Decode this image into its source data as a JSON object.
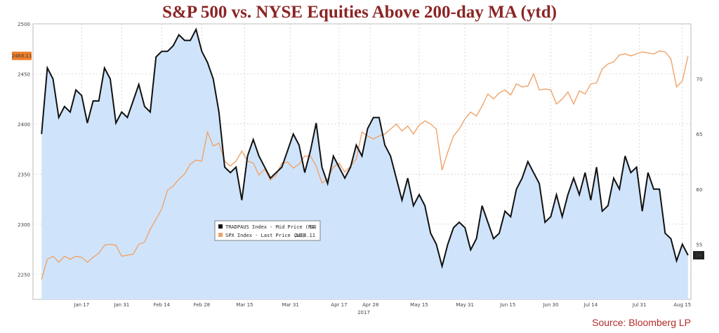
{
  "title": "S&P 500 vs. NYSE Equities Above 200-day MA (ytd)",
  "source": "Source: Bloomberg LP",
  "chart_data": {
    "type": "line",
    "xlabel": "2017",
    "grid": true,
    "legend_position": "center-left",
    "x_ticks": [
      "Jan 17",
      "Jan 31",
      "Feb 14",
      "Feb 28",
      "Mar 15",
      "Mar 31",
      "Apr 17",
      "Apr 28",
      "May 15",
      "May 31",
      "Jun 15",
      "Jun 30",
      "Jul 14",
      "Jul 31",
      "Aug 15"
    ],
    "x_tick_days": [
      17,
      31,
      45,
      59,
      74,
      90,
      107,
      118,
      135,
      151,
      166,
      181,
      195,
      212,
      227
    ],
    "left_axis": {
      "ylim": [
        2225,
        2500
      ],
      "ticks": [
        2250,
        2300,
        2350,
        2400,
        2450,
        2500
      ]
    },
    "right_axis": {
      "ylim": [
        50,
        75
      ],
      "ticks": [
        55,
        60,
        65,
        70
      ]
    },
    "series": [
      {
        "name": "TRADPAUS Index - Mid Price (R1)",
        "last_label": "54",
        "axis": "right",
        "color": "#111111",
        "fill": "#cfe4fb",
        "x": [
          3,
          5,
          7,
          9,
          11,
          13,
          15,
          17,
          19,
          21,
          23,
          25,
          27,
          29,
          31,
          33,
          35,
          37,
          39,
          41,
          43,
          45,
          47,
          49,
          51,
          53,
          55,
          57,
          59,
          61,
          63,
          65,
          67,
          69,
          71,
          73,
          75,
          77,
          79,
          81,
          83,
          85,
          87,
          89,
          91,
          93,
          95,
          97,
          99,
          101,
          103,
          105,
          107,
          109,
          111,
          113,
          115,
          117,
          119,
          121,
          123,
          125,
          127,
          129,
          131,
          133,
          135,
          137,
          139,
          141,
          143,
          145,
          147,
          149,
          151,
          153,
          155,
          157,
          159,
          161,
          163,
          165,
          167,
          169,
          171,
          173,
          175,
          177,
          179,
          181,
          183,
          185,
          187,
          189,
          191,
          193,
          195,
          197,
          199,
          201,
          203,
          205,
          207,
          209,
          211,
          213,
          215,
          217,
          219,
          221,
          223,
          225,
          227,
          229
        ],
        "y": [
          65,
          71,
          70,
          66.5,
          67.5,
          67,
          69,
          68.5,
          66,
          68,
          68,
          71,
          70,
          66,
          67,
          66.5,
          68,
          69.5,
          67.5,
          67,
          72,
          72.5,
          72.5,
          73,
          74,
          73.5,
          73.5,
          74.5,
          72.5,
          71.5,
          70,
          67,
          62,
          61.5,
          62,
          59,
          63,
          64.5,
          63,
          62,
          61,
          61.5,
          62,
          63.5,
          65,
          64,
          61.5,
          63.5,
          66,
          62,
          60.5,
          63,
          62,
          61,
          62,
          64,
          63,
          65.5,
          66.5,
          66.5,
          64,
          63,
          61,
          59,
          61,
          58.5,
          59.5,
          58.5,
          56,
          55,
          53,
          55,
          56.5,
          57,
          56.5,
          54.5,
          55.5,
          58.5,
          57,
          55.5,
          56,
          58,
          57.5,
          60,
          61,
          62.5,
          61.5,
          60.5,
          57,
          57.5,
          59.5,
          57.5,
          59.5,
          61,
          59.5,
          61.5,
          59,
          62,
          58,
          58.5,
          61,
          60,
          63,
          61.5,
          62,
          58,
          61.5,
          60,
          60,
          56,
          55.5,
          53.5,
          55,
          54
        ]
      },
      {
        "name": "SPX Index - Last Price (L1)",
        "last_label": "2468.11",
        "axis": "left",
        "color": "#f0a36a",
        "x": [
          3,
          5,
          7,
          9,
          11,
          13,
          15,
          17,
          19,
          21,
          23,
          25,
          27,
          29,
          31,
          33,
          35,
          37,
          39,
          41,
          43,
          45,
          47,
          49,
          51,
          53,
          55,
          57,
          59,
          61,
          63,
          65,
          67,
          69,
          71,
          73,
          75,
          77,
          79,
          81,
          83,
          85,
          87,
          89,
          91,
          93,
          95,
          97,
          99,
          101,
          103,
          105,
          107,
          109,
          111,
          113,
          115,
          117,
          119,
          121,
          123,
          125,
          127,
          129,
          131,
          133,
          135,
          137,
          139,
          141,
          143,
          145,
          147,
          149,
          151,
          153,
          155,
          157,
          159,
          161,
          163,
          165,
          167,
          169,
          171,
          173,
          175,
          177,
          179,
          181,
          183,
          185,
          187,
          189,
          191,
          193,
          195,
          197,
          199,
          201,
          203,
          205,
          207,
          209,
          211,
          213,
          215,
          217,
          219,
          221,
          223,
          225,
          227,
          229
        ],
        "y": [
          2245,
          2265,
          2268,
          2262,
          2268,
          2265,
          2268,
          2267,
          2262,
          2267,
          2271,
          2279,
          2280,
          2279,
          2268,
          2269,
          2270,
          2280,
          2282,
          2295,
          2305,
          2315,
          2334,
          2338,
          2345,
          2350,
          2360,
          2364,
          2363,
          2392,
          2378,
          2381,
          2363,
          2358,
          2363,
          2373,
          2363,
          2361,
          2349,
          2355,
          2344,
          2349,
          2361,
          2362,
          2356,
          2360,
          2368,
          2368,
          2358,
          2341,
          2345,
          2357,
          2361,
          2352,
          2358,
          2365,
          2392,
          2388,
          2385,
          2388,
          2390,
          2395,
          2400,
          2393,
          2398,
          2390,
          2399,
          2403,
          2400,
          2395,
          2354,
          2372,
          2388,
          2395,
          2405,
          2412,
          2408,
          2418,
          2430,
          2425,
          2431,
          2434,
          2429,
          2440,
          2437,
          2438,
          2450,
          2434,
          2435,
          2434,
          2420,
          2425,
          2432,
          2420,
          2433,
          2430,
          2440,
          2441,
          2455,
          2460,
          2462,
          2469,
          2470,
          2468,
          2470,
          2472,
          2471,
          2470,
          2473,
          2472,
          2465,
          2437,
          2443,
          2468
        ]
      }
    ]
  }
}
